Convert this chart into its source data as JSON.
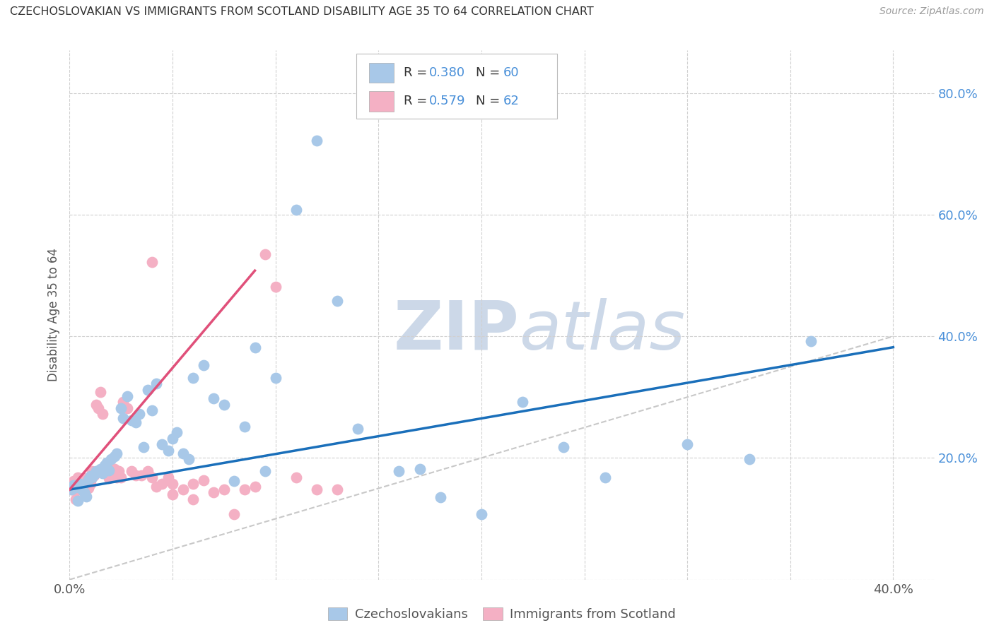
{
  "title": "CZECHOSLOVAKIAN VS IMMIGRANTS FROM SCOTLAND DISABILITY AGE 35 TO 64 CORRELATION CHART",
  "source": "Source: ZipAtlas.com",
  "ylabel": "Disability Age 35 to 64",
  "xlim": [
    0.0,
    0.42
  ],
  "ylim": [
    0.0,
    0.87
  ],
  "xtick_positions": [
    0.0,
    0.05,
    0.1,
    0.15,
    0.2,
    0.25,
    0.3,
    0.35,
    0.4
  ],
  "xtick_labels": [
    "0.0%",
    "",
    "",
    "",
    "",
    "",
    "",
    "",
    "40.0%"
  ],
  "ytick_positions": [
    0.0,
    0.2,
    0.4,
    0.6,
    0.8
  ],
  "ytick_labels_right": [
    "",
    "20.0%",
    "40.0%",
    "60.0%",
    "80.0%"
  ],
  "blue_R": "0.380",
  "blue_N": "60",
  "pink_R": "0.579",
  "pink_N": "62",
  "blue_scatter_color": "#a8c8e8",
  "pink_scatter_color": "#f4b0c4",
  "blue_line_color": "#1a6fba",
  "pink_line_color": "#e0507a",
  "diag_color": "#c8c8c8",
  "bg_color": "#ffffff",
  "watermark_text_color": "#ccd8e8",
  "number_color": "#4a90d9",
  "text_color": "#333333",
  "tick_color": "#555555",
  "label_blue": "Czechoslovakians",
  "label_pink": "Immigrants from Scotland",
  "blue_x": [
    0.001,
    0.002,
    0.003,
    0.004,
    0.005,
    0.006,
    0.007,
    0.008,
    0.009,
    0.01,
    0.011,
    0.012,
    0.013,
    0.015,
    0.016,
    0.017,
    0.018,
    0.019,
    0.02,
    0.022,
    0.023,
    0.025,
    0.026,
    0.028,
    0.03,
    0.032,
    0.034,
    0.036,
    0.038,
    0.04,
    0.042,
    0.045,
    0.048,
    0.05,
    0.052,
    0.055,
    0.058,
    0.06,
    0.065,
    0.07,
    0.075,
    0.08,
    0.085,
    0.09,
    0.095,
    0.1,
    0.11,
    0.12,
    0.13,
    0.14,
    0.16,
    0.17,
    0.18,
    0.2,
    0.22,
    0.24,
    0.26,
    0.3,
    0.33,
    0.36
  ],
  "blue_y": [
    0.148,
    0.155,
    0.152,
    0.13,
    0.158,
    0.148,
    0.143,
    0.137,
    0.165,
    0.17,
    0.168,
    0.173,
    0.178,
    0.182,
    0.175,
    0.188,
    0.192,
    0.18,
    0.198,
    0.203,
    0.208,
    0.282,
    0.265,
    0.302,
    0.262,
    0.258,
    0.272,
    0.218,
    0.312,
    0.278,
    0.322,
    0.222,
    0.212,
    0.232,
    0.242,
    0.208,
    0.198,
    0.332,
    0.352,
    0.298,
    0.288,
    0.162,
    0.252,
    0.382,
    0.178,
    0.332,
    0.608,
    0.722,
    0.458,
    0.248,
    0.178,
    0.182,
    0.135,
    0.108,
    0.292,
    0.218,
    0.168,
    0.222,
    0.198,
    0.392
  ],
  "pink_x": [
    0.001,
    0.002,
    0.002,
    0.003,
    0.003,
    0.004,
    0.004,
    0.005,
    0.005,
    0.006,
    0.006,
    0.007,
    0.007,
    0.008,
    0.008,
    0.009,
    0.009,
    0.01,
    0.01,
    0.011,
    0.011,
    0.012,
    0.013,
    0.014,
    0.015,
    0.016,
    0.017,
    0.018,
    0.019,
    0.02,
    0.021,
    0.022,
    0.023,
    0.024,
    0.025,
    0.026,
    0.028,
    0.03,
    0.032,
    0.035,
    0.038,
    0.04,
    0.042,
    0.045,
    0.048,
    0.05,
    0.055,
    0.06,
    0.065,
    0.07,
    0.075,
    0.08,
    0.085,
    0.09,
    0.095,
    0.1,
    0.11,
    0.12,
    0.13,
    0.04,
    0.05,
    0.06
  ],
  "pink_y": [
    0.148,
    0.152,
    0.162,
    0.132,
    0.158,
    0.148,
    0.168,
    0.15,
    0.163,
    0.158,
    0.147,
    0.153,
    0.167,
    0.158,
    0.148,
    0.162,
    0.15,
    0.158,
    0.168,
    0.178,
    0.168,
    0.172,
    0.288,
    0.282,
    0.308,
    0.272,
    0.178,
    0.188,
    0.167,
    0.172,
    0.178,
    0.182,
    0.168,
    0.178,
    0.168,
    0.292,
    0.282,
    0.178,
    0.172,
    0.172,
    0.178,
    0.168,
    0.153,
    0.158,
    0.168,
    0.158,
    0.148,
    0.158,
    0.163,
    0.143,
    0.148,
    0.108,
    0.148,
    0.153,
    0.535,
    0.482,
    0.168,
    0.148,
    0.148,
    0.522,
    0.14,
    0.132
  ],
  "blue_regline_x": [
    0.0,
    0.4
  ],
  "blue_regline_y": [
    0.148,
    0.382
  ],
  "pink_regline_x": [
    0.0,
    0.09
  ],
  "pink_regline_y": [
    0.148,
    0.508
  ]
}
